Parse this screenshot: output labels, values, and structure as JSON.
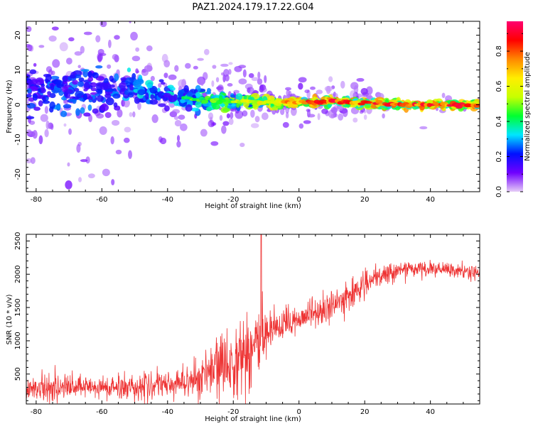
{
  "figure": {
    "title": "PAZ1.2024.179.17.22.G04"
  },
  "chart_data": [
    {
      "type": "heatmap",
      "title": "",
      "xlabel": "Height of straight line (km)",
      "ylabel": "Frequency (Hz)",
      "xlim": [
        -83,
        55
      ],
      "ylim": [
        -25,
        24
      ],
      "x_ticks": [
        -80,
        -60,
        -40,
        -20,
        0,
        20,
        40
      ],
      "y_ticks": [
        -20,
        -10,
        0,
        10,
        20
      ],
      "colorbar": {
        "label": "Normalized spectral amplitude",
        "range": [
          0,
          0.97
        ],
        "ticks": [
          0.0,
          0.2,
          0.4,
          0.6,
          0.8
        ],
        "colormap": [
          "#e6cdf7",
          "#7000ff",
          "#0010ff",
          "#00e6ff",
          "#00ff30",
          "#c8ff00",
          "#ffee00",
          "#ff8800",
          "#ff0000",
          "#ff0070"
        ]
      },
      "ridge": [
        {
          "x": -82,
          "freq": 4.0,
          "spread": 5.5,
          "amp": 0.3
        },
        {
          "x": -70,
          "freq": 4.0,
          "spread": 6.0,
          "amp": 0.32
        },
        {
          "x": -60,
          "freq": 3.5,
          "spread": 5.5,
          "amp": 0.3
        },
        {
          "x": -50,
          "freq": 5.0,
          "spread": 3.5,
          "amp": 0.4
        },
        {
          "x": -40,
          "freq": 2.5,
          "spread": 3.0,
          "amp": 0.4
        },
        {
          "x": -30,
          "freq": 1.5,
          "spread": 2.5,
          "amp": 0.5
        },
        {
          "x": -20,
          "freq": 1.0,
          "spread": 2.0,
          "amp": 0.6
        },
        {
          "x": -10,
          "freq": 0.8,
          "spread": 1.2,
          "amp": 0.7
        },
        {
          "x": 0,
          "freq": 0.5,
          "spread": 1.0,
          "amp": 0.85
        },
        {
          "x": 10,
          "freq": 1.0,
          "spread": 1.0,
          "amp": 0.9
        },
        {
          "x": 20,
          "freq": 0.5,
          "spread": 1.0,
          "amp": 0.85
        },
        {
          "x": 30,
          "freq": 0.0,
          "spread": 1.0,
          "amp": 0.9
        },
        {
          "x": 40,
          "freq": 0.0,
          "spread": 1.0,
          "amp": 0.9
        },
        {
          "x": 55,
          "freq": 0.0,
          "spread": 1.0,
          "amp": 0.88
        }
      ]
    },
    {
      "type": "line",
      "title": "",
      "xlabel": "Height of straight line (km)",
      "ylabel": "SNR (10 * v/v)",
      "xlim": [
        -83,
        55
      ],
      "ylim": [
        50,
        2600
      ],
      "x_ticks": [
        -80,
        -60,
        -40,
        -20,
        0,
        20,
        40
      ],
      "y_ticks": [
        500,
        1000,
        1500,
        2000,
        2500
      ],
      "color": "#ee3333",
      "trend": [
        {
          "x": -83,
          "snr": 300,
          "noise": 170
        },
        {
          "x": -60,
          "snr": 290,
          "noise": 170
        },
        {
          "x": -40,
          "snr": 330,
          "noise": 180
        },
        {
          "x": -30,
          "snr": 450,
          "noise": 300
        },
        {
          "x": -20,
          "snr": 700,
          "noise": 500
        },
        {
          "x": -12,
          "snr": 1000,
          "noise": 650
        },
        {
          "x": -7,
          "snr": 1150,
          "noise": 250
        },
        {
          "x": 0,
          "snr": 1350,
          "noise": 200
        },
        {
          "x": 10,
          "snr": 1500,
          "noise": 220
        },
        {
          "x": 20,
          "snr": 1850,
          "noise": 170
        },
        {
          "x": 30,
          "snr": 2070,
          "noise": 120
        },
        {
          "x": 40,
          "snr": 2080,
          "noise": 100
        },
        {
          "x": 55,
          "snr": 2020,
          "noise": 100
        }
      ],
      "peak": {
        "x": -11.5,
        "snr": 2600
      }
    }
  ]
}
